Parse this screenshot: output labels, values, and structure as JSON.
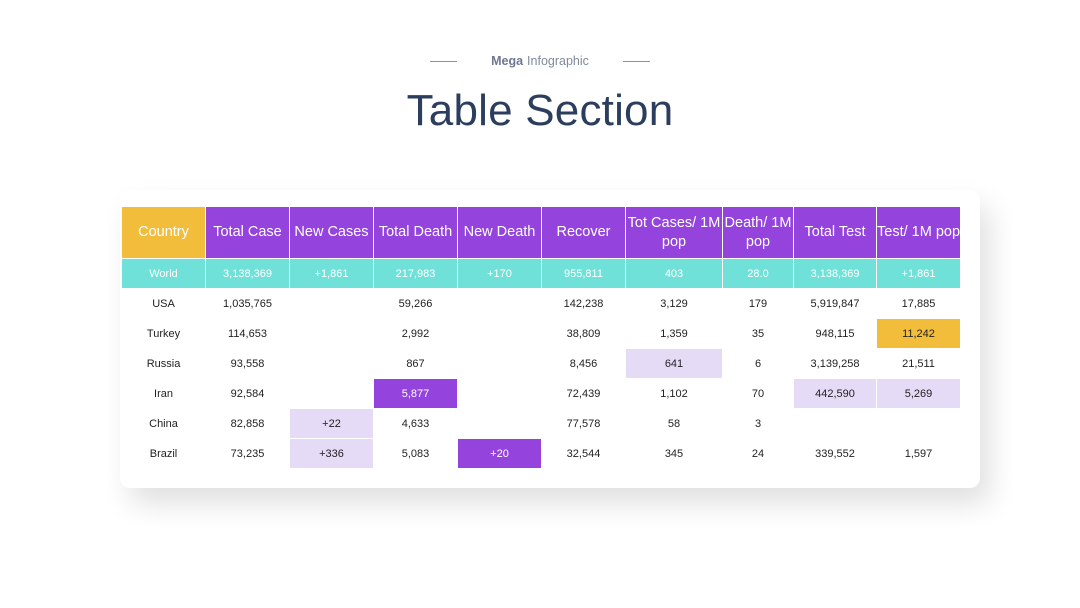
{
  "header": {
    "eyebrow_strong": "Mega",
    "eyebrow_rest": "Infographic",
    "title": "Table Section"
  },
  "table": {
    "columns": [
      "Country",
      "Total Case",
      "New Cases",
      "Total Death",
      "New Death",
      "Recover",
      "Tot Cases/ 1M pop",
      "Death/ 1M pop",
      "Total Test",
      "Test/ 1M pop"
    ],
    "world": [
      "World",
      "3,138,369",
      "+1,861",
      "217,983",
      "+170",
      "955,811",
      "403",
      "28.0",
      "3,138,369",
      "+1,861"
    ],
    "rows": [
      [
        "USA",
        "1,035,765",
        "",
        "59,266",
        "",
        "142,238",
        "3,129",
        "179",
        "5,919,847",
        "17,885"
      ],
      [
        "Turkey",
        "114,653",
        "",
        "2,992",
        "",
        "38,809",
        "1,359",
        "35",
        "948,115",
        "11,242"
      ],
      [
        "Russia",
        "93,558",
        "",
        "867",
        "",
        "8,456",
        "641",
        "6",
        "3,139,258",
        "21,511"
      ],
      [
        "Iran",
        "92,584",
        "",
        "5,877",
        "",
        "72,439",
        "1,102",
        "70",
        "442,590",
        "5,269"
      ],
      [
        "China",
        "82,858",
        "+22",
        "4,633",
        "",
        "77,578",
        "58",
        "3",
        "",
        ""
      ],
      [
        "Brazil",
        "73,235",
        "+336",
        "5,083",
        "+20",
        "32,544",
        "345",
        "24",
        "339,552",
        "1,597"
      ]
    ]
  },
  "colors": {
    "header_purple": "#9444dd",
    "country_header_gold": "#f3bd3c",
    "world_row_teal": "#6fe1d9",
    "highlight_lavender": "#e6dbf7",
    "highlight_gold": "#f3bd3c",
    "title_navy": "#2c3e5e"
  }
}
